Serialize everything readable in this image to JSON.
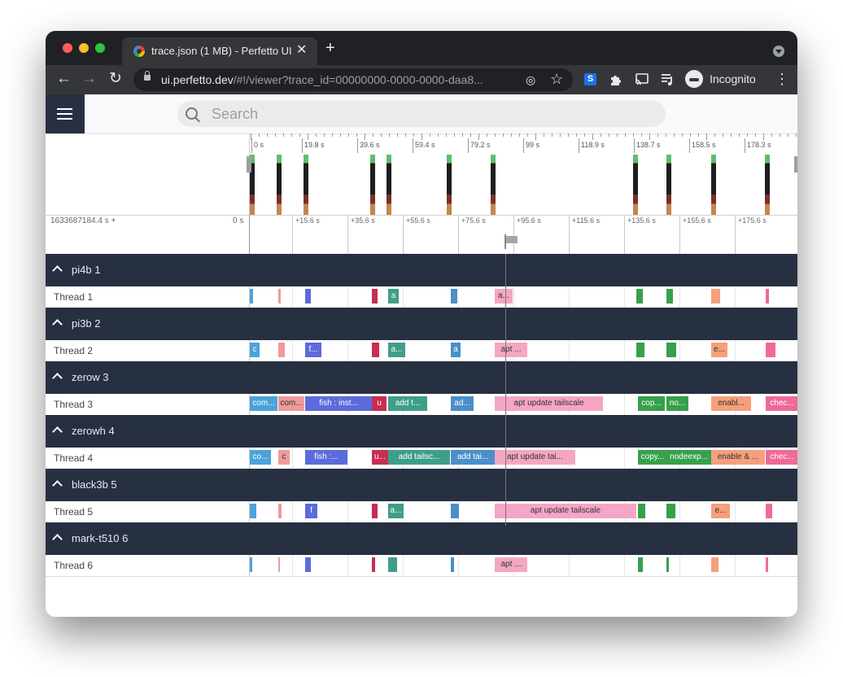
{
  "browser": {
    "tab_title": "trace.json (1 MB) - Perfetto UI",
    "tab_close": "✕",
    "new_tab": "+",
    "url_host": "ui.perfetto.dev",
    "url_path": "/#!/viewer?trace_id=00000000-0000-0000-daa8...",
    "profile_label": "Incognito",
    "nav": {
      "back": "←",
      "forward": "→",
      "reload": "↻",
      "menu": "⋮"
    },
    "icons": [
      "lock-icon",
      "eye-off-icon",
      "star-icon",
      "extension-s-icon",
      "puzzle-icon",
      "cast-icon",
      "media-queue-icon",
      "incognito-icon"
    ]
  },
  "app": {
    "search_placeholder": "Search"
  },
  "overview": {
    "tick_labels": [
      "0 s",
      "19.8 s",
      "39.6 s",
      "59.4 s",
      "79.2 s",
      "99 s",
      "118.9 s",
      "138.7 s",
      "158.5 s",
      "178.3 s"
    ]
  },
  "timeline": {
    "offset_label": "1633687184.4 s +",
    "zero_label": "0 s",
    "tick_labels": [
      "+15.6 s",
      "+35.6 s",
      "+55.6 s",
      "+75.6 s",
      "+95.6 s",
      "+115.6 s",
      "+135.6 s",
      "+155.6 s",
      "+175.6 s"
    ]
  },
  "colors": {
    "light_blue": "#4aa3d8",
    "pink": "#ef9a9a",
    "blue": "#5c6bdc",
    "crimson": "#c62f51",
    "teal": "#3f9e8a",
    "steel": "#4a8fc9",
    "lightpink": "#f4a6c2",
    "green": "#37a04a",
    "salmon": "#f4a07c",
    "hotpink": "#ee6a98"
  },
  "groups": [
    {
      "name": "pi4b 1",
      "thread": "Thread 1",
      "slices": [
        {
          "label": "",
          "color": "#4aa3d8"
        },
        {
          "label": "",
          "color": "#ef9a9a"
        },
        {
          "label": "",
          "color": "#5c6bdc"
        },
        {
          "label": "",
          "color": "#c62f51"
        },
        {
          "label": "a",
          "color": "#3f9e8a"
        },
        {
          "label": "",
          "color": "#4a8fc9"
        },
        {
          "label": "a...",
          "color": "#f4a6c2"
        },
        {
          "label": "",
          "color": "#37a04a"
        },
        {
          "label": "",
          "color": "#37a04a"
        },
        {
          "label": "",
          "color": "#f4a07c"
        },
        {
          "label": "",
          "color": "#ee6a98"
        }
      ]
    },
    {
      "name": "pi3b 2",
      "thread": "Thread 2",
      "slices": [
        {
          "label": "c",
          "color": "#4aa3d8"
        },
        {
          "label": "",
          "color": "#ef9a9a"
        },
        {
          "label": "f...",
          "color": "#5c6bdc"
        },
        {
          "label": "",
          "color": "#c62f51"
        },
        {
          "label": "a...",
          "color": "#3f9e8a"
        },
        {
          "label": "a",
          "color": "#4a8fc9"
        },
        {
          "label": "apt ...",
          "color": "#f4a6c2"
        },
        {
          "label": "",
          "color": "#37a04a"
        },
        {
          "label": "",
          "color": "#37a04a"
        },
        {
          "label": "e...",
          "color": "#f4a07c"
        },
        {
          "label": "",
          "color": "#ee6a98"
        }
      ]
    },
    {
      "name": "zerow 3",
      "thread": "Thread 3",
      "slices": [
        {
          "label": "com...",
          "color": "#4aa3d8"
        },
        {
          "label": "com...",
          "color": "#ef9a9a"
        },
        {
          "label": "fish : inst...",
          "color": "#5c6bdc"
        },
        {
          "label": "u",
          "color": "#c62f51"
        },
        {
          "label": "add t...",
          "color": "#3f9e8a"
        },
        {
          "label": "ad...",
          "color": "#4a8fc9"
        },
        {
          "label": "apt update tailscale",
          "color": "#f4a6c2"
        },
        {
          "label": "cop...",
          "color": "#37a04a"
        },
        {
          "label": "no...",
          "color": "#37a04a"
        },
        {
          "label": "enabl...",
          "color": "#f4a07c"
        },
        {
          "label": "chec...",
          "color": "#ee6a98"
        }
      ]
    },
    {
      "name": "zerowh 4",
      "thread": "Thread 4",
      "slices": [
        {
          "label": "co...",
          "color": "#4aa3d8"
        },
        {
          "label": "c",
          "color": "#ef9a9a"
        },
        {
          "label": "fish :...",
          "color": "#5c6bdc"
        },
        {
          "label": "u...",
          "color": "#c62f51"
        },
        {
          "label": "add tailsc...",
          "color": "#3f9e8a"
        },
        {
          "label": "add tai...",
          "color": "#4a8fc9"
        },
        {
          "label": "apt update tai...",
          "color": "#f4a6c2"
        },
        {
          "label": "copy...",
          "color": "#37a04a"
        },
        {
          "label": "nodeexp...",
          "color": "#37a04a"
        },
        {
          "label": "enable & ...",
          "color": "#f4a07c"
        },
        {
          "label": "chec...",
          "color": "#ee6a98"
        }
      ]
    },
    {
      "name": "black3b 5",
      "thread": "Thread 5",
      "slices": [
        {
          "label": "",
          "color": "#4aa3d8"
        },
        {
          "label": "",
          "color": "#ef9a9a"
        },
        {
          "label": "f",
          "color": "#5c6bdc"
        },
        {
          "label": "",
          "color": "#c62f51"
        },
        {
          "label": "a...",
          "color": "#3f9e8a"
        },
        {
          "label": "",
          "color": "#4a8fc9"
        },
        {
          "label": "apt update tailscale",
          "color": "#f4a6c2"
        },
        {
          "label": "",
          "color": "#37a04a"
        },
        {
          "label": "",
          "color": "#37a04a"
        },
        {
          "label": "e...",
          "color": "#f4a07c"
        },
        {
          "label": "",
          "color": "#ee6a98"
        }
      ]
    },
    {
      "name": "mark-t510 6",
      "thread": "Thread 6",
      "slices": [
        {
          "label": "",
          "color": "#4aa3d8"
        },
        {
          "label": "",
          "color": "#ef9a9a"
        },
        {
          "label": "",
          "color": "#5c6bdc"
        },
        {
          "label": "",
          "color": "#c62f51"
        },
        {
          "label": "",
          "color": "#3f9e8a"
        },
        {
          "label": "",
          "color": "#4a8fc9"
        },
        {
          "label": "apt ...",
          "color": "#f4a6c2"
        },
        {
          "label": "",
          "color": "#37a04a"
        },
        {
          "label": "",
          "color": "#37a04a"
        },
        {
          "label": "",
          "color": "#f4a07c"
        },
        {
          "label": "",
          "color": "#ee6a98"
        }
      ]
    }
  ]
}
